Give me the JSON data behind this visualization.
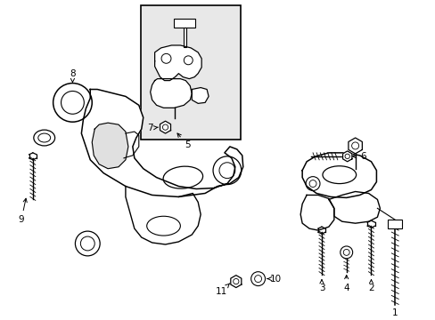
{
  "bg_color": "#ffffff",
  "line_color": "#000000",
  "inset_bg": "#e8e8e8",
  "figsize": [
    4.89,
    3.6
  ],
  "dpi": 100
}
